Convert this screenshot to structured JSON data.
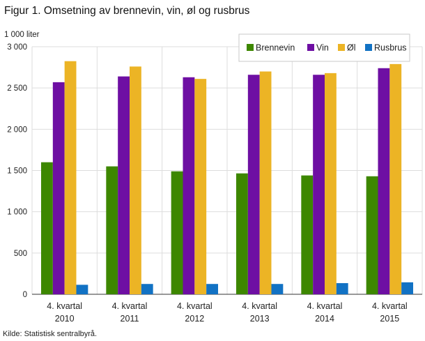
{
  "title": "Figur 1. Omsetning av brennevin, vin, øl og rusbrus",
  "source": "Kilde: Statistisk sentralbyrå.",
  "chart_data": {
    "type": "bar",
    "title": "Figur 1. Omsetning av brennevin, vin, øl og rusbrus",
    "ylabel": "1 000 liter",
    "xlabel": "",
    "ylim": [
      0,
      3000
    ],
    "yticks": [
      0,
      500,
      1000,
      1500,
      2000,
      2500,
      3000
    ],
    "ytick_labels": [
      "0",
      "500",
      "1 000",
      "1 500",
      "2 000",
      "2 500",
      "3 000"
    ],
    "grid": true,
    "legend_position": "top-right",
    "categories": [
      [
        "4. kvartal",
        "2010"
      ],
      [
        "4. kvartal",
        "2011"
      ],
      [
        "4. kvartal",
        "2012"
      ],
      [
        "4. kvartal",
        "2013"
      ],
      [
        "4. kvartal",
        "2014"
      ],
      [
        "4. kvartal",
        "2015"
      ]
    ],
    "series": [
      {
        "name": "Brennevin",
        "color": "#3d8700",
        "values": [
          1600,
          1550,
          1490,
          1465,
          1440,
          1430
        ]
      },
      {
        "name": "Vin",
        "color": "#6e0fa3",
        "values": [
          2570,
          2640,
          2630,
          2660,
          2660,
          2740
        ]
      },
      {
        "name": "Øl",
        "color": "#ecb425",
        "values": [
          2825,
          2760,
          2610,
          2700,
          2680,
          2790
        ]
      },
      {
        "name": "Rusbrus",
        "color": "#1272c4",
        "values": [
          115,
          125,
          125,
          125,
          135,
          145
        ]
      }
    ]
  }
}
